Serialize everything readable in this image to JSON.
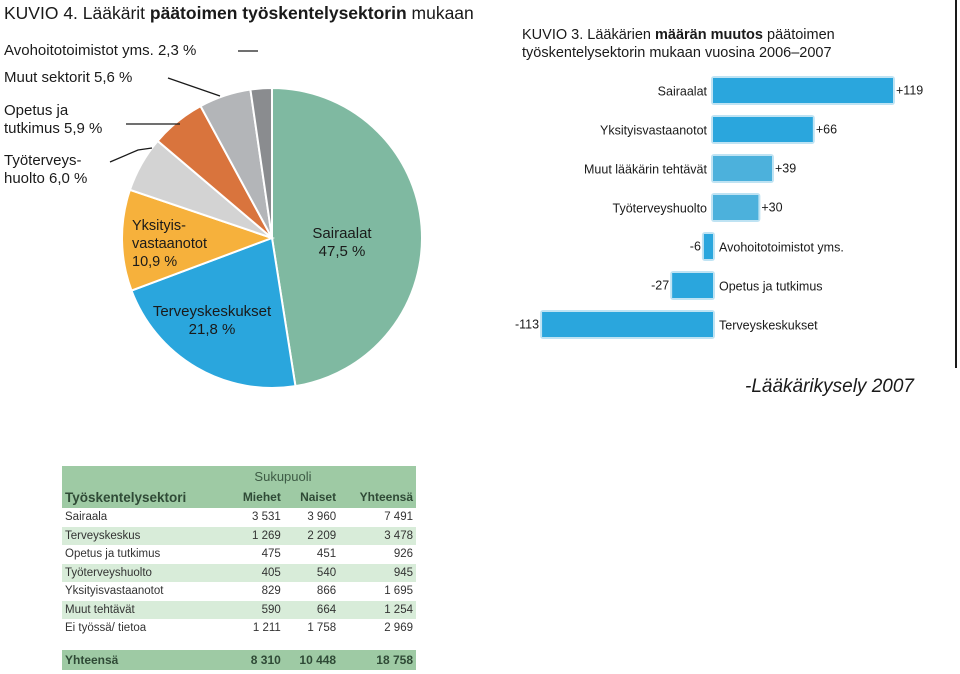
{
  "figure4": {
    "title_prefix": "KUVIO 4. Lääkärit ",
    "title_bold": "päätoimen työskentelysektorin",
    "title_suffix": " mukaan"
  },
  "figure3": {
    "title_prefix": "KUVIO 3. Lääkärien ",
    "title_bold": "määrän muutos",
    "title_suffix": " päätoimen",
    "title_line2": "työskentelysektorin mukaan vuosina 2006–2007"
  },
  "source": "-Lääkärikysely 2007",
  "chart_data": [
    {
      "type": "pie",
      "title": "KUVIO 4. Lääkärit päätoimen työskentelysektorin mukaan",
      "slices": [
        {
          "label": "Sairaalat",
          "value_label": "47,5 %",
          "value": 47.5,
          "color": "#7fb9a1"
        },
        {
          "label": "Terveyskeskukset",
          "value_label": "21,8 %",
          "value": 21.8,
          "color": "#2aa6dd"
        },
        {
          "label": "Yksityis- vastaanotot",
          "value_label": "10,9 %",
          "value": 10.9,
          "color": "#f6b13c"
        },
        {
          "label": "Työterveys- huolto",
          "value_label": "6,0 %",
          "value": 6.0,
          "color": "#d3d3d3"
        },
        {
          "label": "Opetus ja tutkimus",
          "value_label": "5,9 %",
          "value": 5.9,
          "color": "#d9743d"
        },
        {
          "label": "Muut sektorit",
          "value_label": "5,6 %",
          "value": 5.6,
          "color": "#b3b5b8"
        },
        {
          "label": "Avohoitotoimistot yms.",
          "value_label": "2,3 %",
          "value": 2.3,
          "color": "#8a8c8f"
        }
      ]
    },
    {
      "type": "bar",
      "orientation": "horizontal",
      "title": "KUVIO 3. Lääkärien määrän muutos päätoimen työskentelysektorin mukaan vuosina 2006–2007",
      "categories": [
        "Sairaalat",
        "Yksityisvastaanotot",
        "Muut lääkärin tehtävät",
        "Työterveyshuolto",
        "Avohoitotoimistot yms.",
        "Opetus ja tutkimus",
        "Terveyskeskukset"
      ],
      "values": [
        119,
        66,
        39,
        30,
        -6,
        -27,
        -113
      ],
      "value_labels": [
        "+119",
        "+66",
        "+39",
        "+30",
        "-6",
        "-27",
        "-113"
      ],
      "colors": [
        "#2aa6dd",
        "#2aa6dd",
        "#4cb1dc",
        "#4cb1dc",
        "#2aa6dd",
        "#2aa6dd",
        "#2aa6dd"
      ]
    },
    {
      "type": "table",
      "group_header": "Sukupuoli",
      "columns": [
        "Työskentelysektori",
        "Miehet",
        "Naiset",
        "Yhteensä"
      ],
      "rows": [
        [
          "Sairaala",
          "3 531",
          "3 960",
          "7 491"
        ],
        [
          "Terveyskeskus",
          "1 269",
          "2 209",
          "3 478"
        ],
        [
          "Opetus ja tutkimus",
          "475",
          "451",
          "926"
        ],
        [
          "Työterveyshuolto",
          "405",
          "540",
          "945"
        ],
        [
          "Yksityisvastaanotot",
          "829",
          "866",
          "1 695"
        ],
        [
          "Muut tehtävät",
          "590",
          "664",
          "1 254"
        ],
        [
          "Ei työssä/ tietoa",
          "1 211",
          "1 758",
          "2 969"
        ]
      ],
      "total": [
        "Yhteensä",
        "8 310",
        "10 448",
        "18 758"
      ]
    }
  ]
}
